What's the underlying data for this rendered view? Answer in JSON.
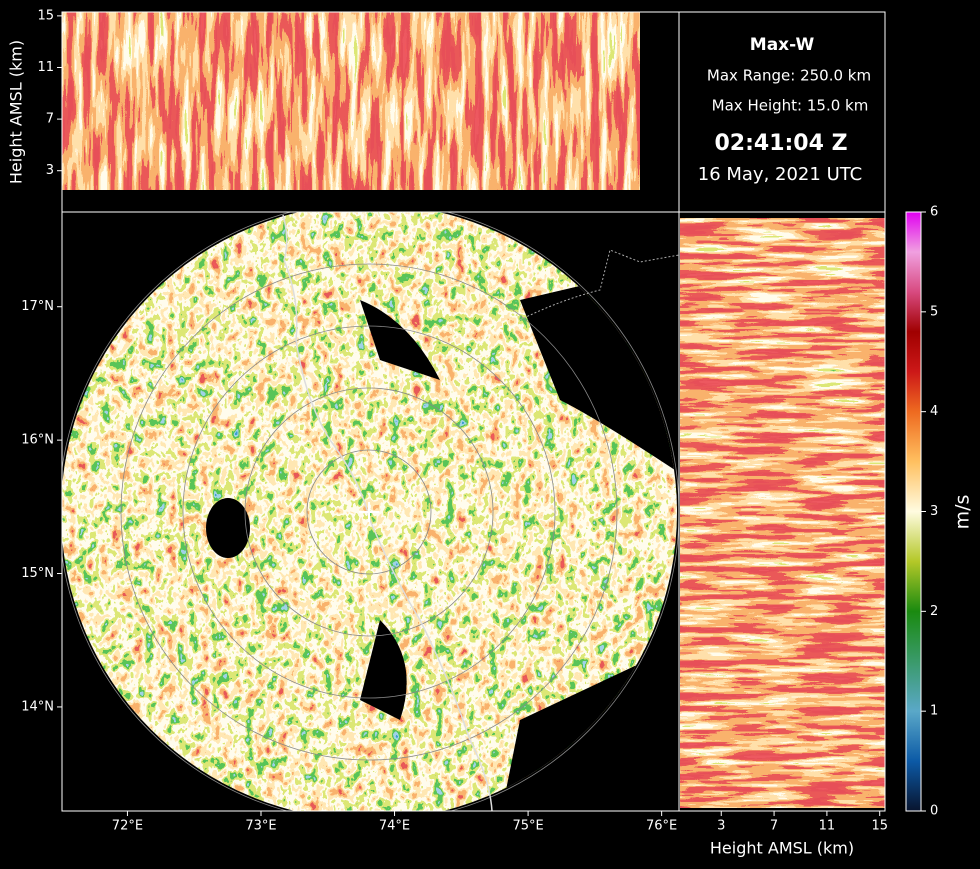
{
  "chart_data": [
    {
      "type": "map",
      "xlim": [
        71.51,
        76.13
      ],
      "ylim": [
        13.22,
        17.71
      ],
      "xticks": [
        {
          "value": 72,
          "label": "72°E"
        },
        {
          "value": 73,
          "label": "73°E"
        },
        {
          "value": 74,
          "label": "74°E"
        },
        {
          "value": 75,
          "label": "75°E"
        },
        {
          "value": 76,
          "label": "76°E"
        }
      ],
      "yticks": [
        {
          "value": 14,
          "label": "14°N"
        },
        {
          "value": 15,
          "label": "15°N"
        },
        {
          "value": 16,
          "label": "16°N"
        },
        {
          "value": 17,
          "label": "17°N"
        }
      ]
    },
    {
      "type": "height-lon",
      "ylabel": "Height AMSL (km)",
      "ylim": [
        -0.2,
        15.3
      ],
      "yticks": [
        3,
        7,
        11,
        15
      ]
    },
    {
      "type": "height-lat",
      "xlabel": "Height AMSL (km)",
      "xlim": [
        -0.2,
        15.4
      ],
      "xticks": [
        3,
        7,
        11,
        15
      ]
    },
    {
      "type": "colorbar",
      "label": "m/s",
      "ylim": [
        0,
        6
      ],
      "yticks": [
        0,
        1,
        2,
        3,
        4,
        5,
        6
      ],
      "colormap": [
        {
          "value": 0,
          "color": "#08142e"
        },
        {
          "value": 0.5,
          "color": "#0c5aa6"
        },
        {
          "value": 1,
          "color": "#5aa8c8"
        },
        {
          "value": 1.5,
          "color": "#3a9a6a"
        },
        {
          "value": 2,
          "color": "#1a8a10"
        },
        {
          "value": 2.5,
          "color": "#b4c828"
        },
        {
          "value": 3,
          "color": "#fffbe0"
        },
        {
          "value": 3.5,
          "color": "#ffc060"
        },
        {
          "value": 4,
          "color": "#ee6a20"
        },
        {
          "value": 4.4,
          "color": "#cc1818"
        },
        {
          "value": 4.8,
          "color": "#a00000"
        },
        {
          "value": 5.2,
          "color": "#d84a80"
        },
        {
          "value": 5.6,
          "color": "#f0a0e0"
        },
        {
          "value": 6,
          "color": "#e000f0"
        }
      ]
    }
  ],
  "text_box": {
    "title": "Max-W",
    "max_range": "Max Range: 250.0 km",
    "max_height": "Max Height: 15.0 km",
    "time": "02:41:04 Z",
    "date": "16 May, 2021 UTC"
  }
}
